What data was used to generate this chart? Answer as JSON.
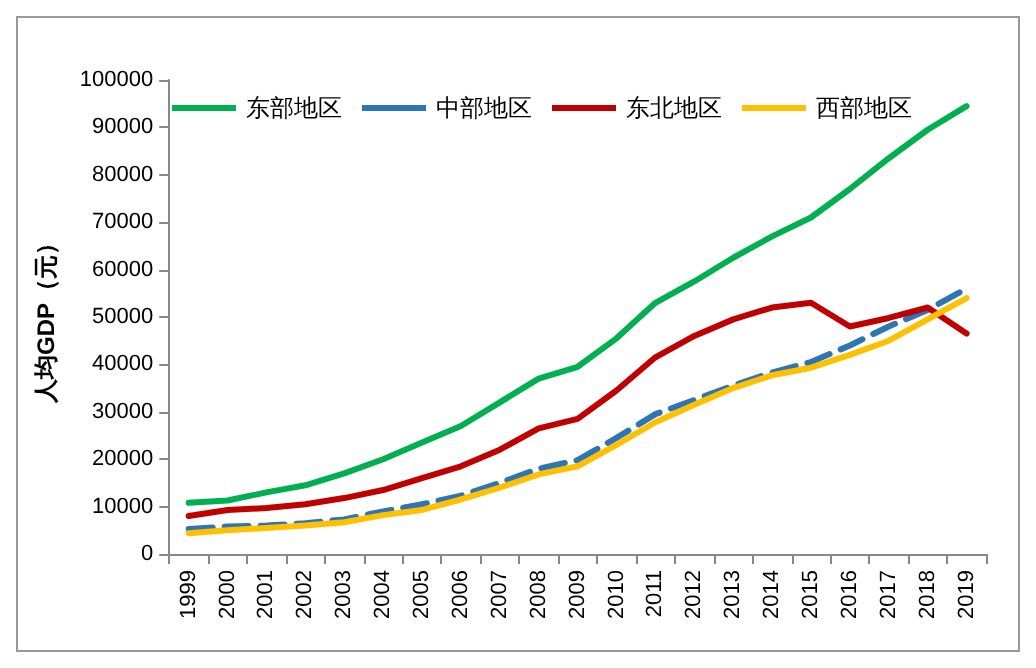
{
  "chart_data": {
    "type": "line",
    "ylabel": "人均GDP（元）",
    "categories": [
      "1999",
      "2000",
      "2001",
      "2002",
      "2003",
      "2004",
      "2005",
      "2006",
      "2007",
      "2008",
      "2009",
      "2010",
      "2011",
      "2012",
      "2013",
      "2014",
      "2015",
      "2016",
      "2017",
      "2018",
      "2019"
    ],
    "series": [
      {
        "name": "东部地区",
        "color": "#00b050",
        "line_style": "solid",
        "values": [
          10800,
          11300,
          13000,
          14500,
          17000,
          20000,
          23500,
          27000,
          32000,
          37000,
          39500,
          45500,
          53000,
          57500,
          62500,
          67000,
          71000,
          77000,
          83500,
          89500,
          94500
        ]
      },
      {
        "name": "中部地区",
        "color": "#2e75b6",
        "line_style": "dashed",
        "values": [
          5300,
          5800,
          6000,
          6500,
          7300,
          9000,
          10500,
          12300,
          15000,
          18000,
          19800,
          24500,
          29500,
          32500,
          35500,
          38300,
          40500,
          44000,
          48000,
          51500,
          56000
        ]
      },
      {
        "name": "东北地区",
        "color": "#c00000",
        "line_style": "solid",
        "values": [
          8000,
          9300,
          9700,
          10500,
          11800,
          13500,
          16000,
          18500,
          22000,
          26500,
          28500,
          34500,
          41500,
          46000,
          49500,
          52000,
          53000,
          48000,
          49800,
          52000,
          46500
        ]
      },
      {
        "name": "西部地区",
        "color": "#ffc000",
        "line_style": "solid",
        "values": [
          4400,
          5000,
          5500,
          6000,
          6700,
          8200,
          9300,
          11500,
          14000,
          16800,
          18500,
          23000,
          27800,
          31500,
          35000,
          37700,
          39300,
          42000,
          45000,
          49500,
          54000
        ]
      }
    ],
    "ylim": [
      0,
      100000
    ],
    "yticks": [
      0,
      10000,
      20000,
      30000,
      40000,
      50000,
      60000,
      70000,
      80000,
      90000,
      100000
    ],
    "grid": false,
    "legend": "top",
    "marker": "none"
  }
}
